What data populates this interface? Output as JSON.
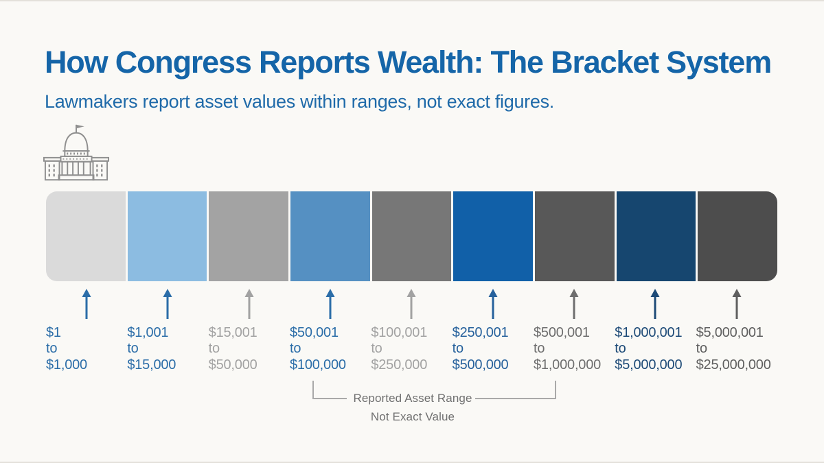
{
  "header": {
    "title": "How Congress Reports Wealth: The Bracket System",
    "subtitle": "Lawmakers report asset values within ranges, not exact figures."
  },
  "icon": {
    "name": "capitol-building-icon",
    "color": "#8f8f8f"
  },
  "connector_label": "to",
  "brackets": [
    {
      "min": "$1",
      "max": "$1,000",
      "segment_color": "#dadada",
      "accent_color": "#2b6da8"
    },
    {
      "min": "$1,001",
      "max": "$15,000",
      "segment_color": "#8cbce1",
      "accent_color": "#2b6da8"
    },
    {
      "min": "$15,001",
      "max": "$50,000",
      "segment_color": "#a3a3a3",
      "accent_color": "#a2a2a2"
    },
    {
      "min": "$50,001",
      "max": "$100,000",
      "segment_color": "#5590c2",
      "accent_color": "#2b6da8"
    },
    {
      "min": "$100,001",
      "max": "$250,000",
      "segment_color": "#777777",
      "accent_color": "#a2a2a2"
    },
    {
      "min": "$250,001",
      "max": "$500,000",
      "segment_color": "#1160a8",
      "accent_color": "#26619c"
    },
    {
      "min": "$500,001",
      "max": "$1,000,000",
      "segment_color": "#585858",
      "accent_color": "#6e6e6e"
    },
    {
      "min": "$1,000,001",
      "max": "$5,000,000",
      "segment_color": "#16466f",
      "accent_color": "#1d4a77"
    },
    {
      "min": "$5,000,001",
      "max": "$25,000,000",
      "segment_color": "#4d4d4d",
      "accent_color": "#5f5f5f"
    }
  ],
  "annotation": {
    "line1": "Reported Asset Range",
    "line2": "Not Exact Value"
  },
  "colors": {
    "background": "#faf9f6",
    "title": "#1565a8",
    "subtitle": "#1f6aa9",
    "annotation_line": "#a9a9a9",
    "annotation_text": "#6f6f6f"
  }
}
